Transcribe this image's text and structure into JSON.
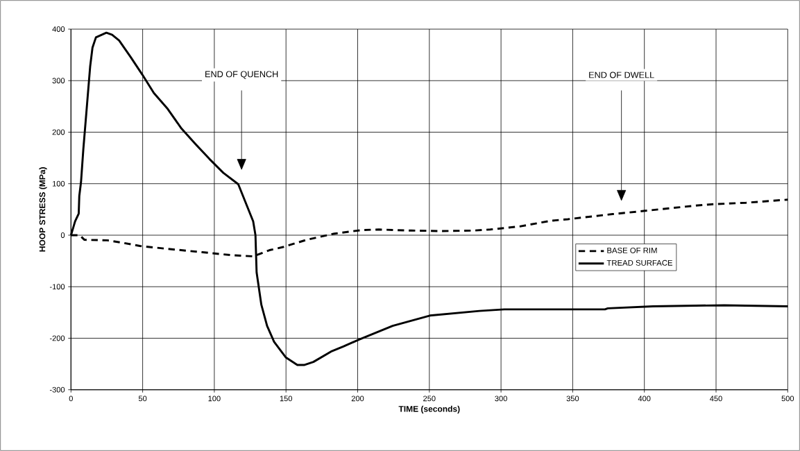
{
  "chart_data": {
    "type": "line",
    "xlabel": "TIME (seconds)",
    "ylabel": "HOOP STRESS (MPa)",
    "xlim": [
      0,
      500
    ],
    "ylim": [
      -300,
      400
    ],
    "xticks": [
      0,
      50,
      100,
      150,
      200,
      250,
      300,
      350,
      400,
      450,
      500
    ],
    "yticks": [
      -300,
      -200,
      -100,
      0,
      100,
      200,
      300,
      400
    ],
    "grid": true,
    "legend": "right",
    "series": [
      {
        "name": "BASE OF RIM",
        "color": "#000000",
        "line_style": "dashed",
        "x": [
          0,
          6.1,
          9.4,
          25.5,
          36.7,
          48.1,
          69,
          91.7,
          112.7,
          127.1,
          138.5,
          148,
          164.3,
          183.7,
          202.9,
          214.8,
          237.5,
          259,
          280.6,
          292.5,
          313,
          334.7,
          346.6,
          377.9,
          399.5,
          434,
          447,
          470.8,
          500
        ],
        "values": [
          0,
          0,
          -9,
          -10,
          -15,
          -21,
          -27,
          -33,
          -39,
          -41,
          -29,
          -23,
          -9,
          3,
          10,
          11,
          9,
          8,
          9,
          11,
          17,
          28,
          31,
          41,
          47,
          57,
          60,
          63,
          69
        ]
      },
      {
        "name": "TREAD SURFACE",
        "color": "#000000",
        "line_style": "solid",
        "x": [
          0,
          2.9,
          5.4,
          5.8,
          7,
          8.6,
          11,
          13.4,
          15,
          17.4,
          24.7,
          28.7,
          33.6,
          41.6,
          49.7,
          57.8,
          67.5,
          77.1,
          86.8,
          96.6,
          106.3,
          116.7,
          127.1,
          128.7,
          129.5,
          132.8,
          136.8,
          141.7,
          149.8,
          157.9,
          162.6,
          169.1,
          182,
          190,
          200.7,
          224.4,
          250.4,
          285,
          302.3,
          372.5,
          374.5,
          406,
          455.7,
          500
        ],
        "values": [
          0,
          27,
          42,
          76,
          103,
          166,
          247,
          328,
          364,
          384,
          393,
          389,
          378,
          346,
          312,
          276,
          245,
          207,
          177,
          148,
          121,
          99,
          27,
          0,
          -72,
          -135,
          -176,
          -207,
          -237,
          -252,
          -252,
          -246,
          -225,
          -216,
          -203,
          -176,
          -156,
          -147,
          -144,
          -144,
          -142,
          -138,
          -136,
          -138
        ]
      }
    ],
    "annotations": [
      "END OF QUENCH",
      "END OF DWELL"
    ]
  }
}
